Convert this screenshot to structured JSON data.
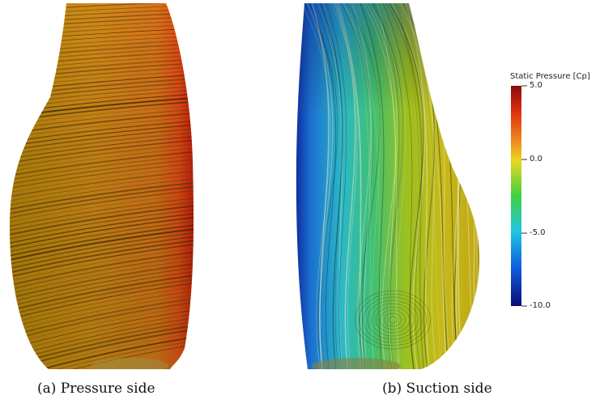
{
  "captions": {
    "a": "(a) Pressure side",
    "b": "(b) Suction side"
  },
  "colorbar": {
    "title": "Static Pressure [Cp]",
    "ticks": [
      {
        "label": "5.0",
        "value": 5.0
      },
      {
        "label": "0.0",
        "value": 0.0
      },
      {
        "label": "-5.0",
        "value": -5.0
      },
      {
        "label": "-10.0",
        "value": -10.0
      }
    ],
    "range": [
      -10.0,
      5.0
    ],
    "colors": [
      "#0a0a7a",
      "#1060e0",
      "#20c8e0",
      "#30d040",
      "#e8e020",
      "#f0a020",
      "#e84010",
      "#8a0a0a"
    ]
  }
}
